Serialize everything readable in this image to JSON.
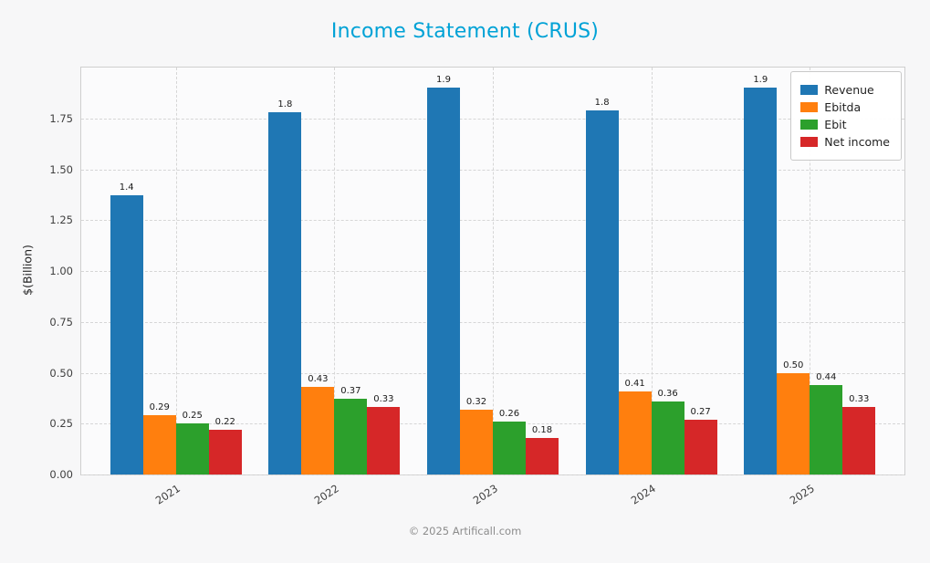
{
  "title": "Income Statement (CRUS)",
  "title_color": "#00a2d6",
  "footer": "© 2025 Artificall.com",
  "chart_data": {
    "type": "bar",
    "title": "Income Statement (CRUS)",
    "xlabel": "",
    "ylabel": "$(Billion)",
    "ylim": [
      0,
      2.0
    ],
    "ytick_labels": [
      "0.00",
      "0.25",
      "0.50",
      "0.75",
      "1.00",
      "1.25",
      "1.50",
      "1.75"
    ],
    "categories": [
      "2021",
      "2022",
      "2023",
      "2024",
      "2025"
    ],
    "grid": true,
    "legend_position": "upper right",
    "series": [
      {
        "name": "Revenue",
        "color": "#1f77b4",
        "values": [
          1.37,
          1.78,
          1.9,
          1.79,
          1.9
        ],
        "bar_labels": [
          "1.4",
          "1.8",
          "1.9",
          "1.8",
          "1.9"
        ]
      },
      {
        "name": "Ebitda",
        "color": "#ff7f0e",
        "values": [
          0.29,
          0.43,
          0.32,
          0.41,
          0.5
        ],
        "bar_labels": [
          "0.29",
          "0.43",
          "0.32",
          "0.41",
          "0.50"
        ]
      },
      {
        "name": "Ebit",
        "color": "#2ca02c",
        "values": [
          0.25,
          0.37,
          0.26,
          0.36,
          0.44
        ],
        "bar_labels": [
          "0.25",
          "0.37",
          "0.26",
          "0.36",
          "0.44"
        ]
      },
      {
        "name": "Net income",
        "color": "#d62728",
        "values": [
          0.22,
          0.33,
          0.18,
          0.27,
          0.33
        ],
        "bar_labels": [
          "0.22",
          "0.33",
          "0.18",
          "0.27",
          "0.33"
        ]
      }
    ]
  }
}
